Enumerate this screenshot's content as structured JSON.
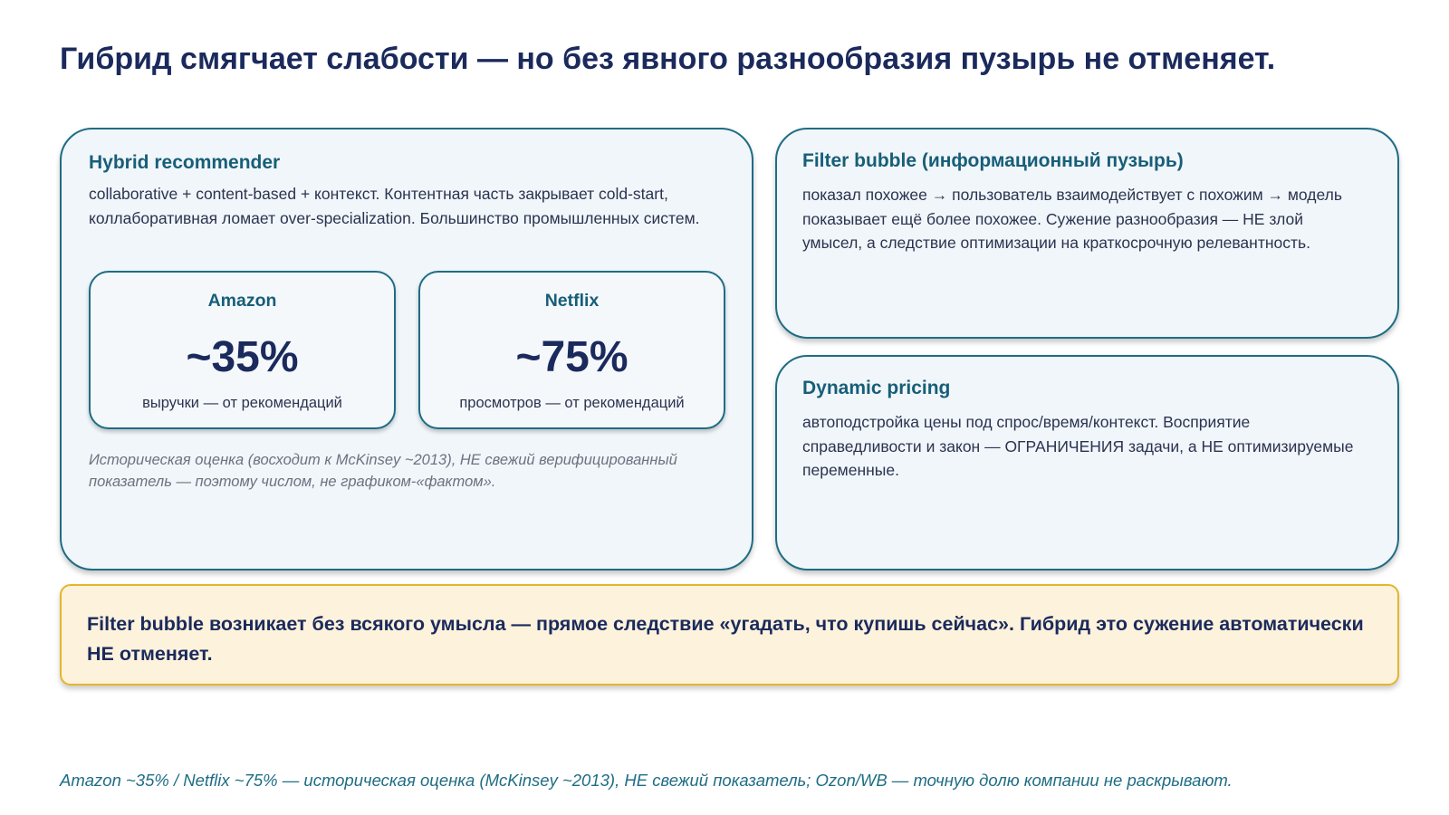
{
  "title": "Гибрид смягчает слабости — но без явного разнообразия пузырь не отменяет.",
  "hybrid": {
    "heading": "Hybrid recommender",
    "body": "collaborative + content-based + контекст. Контентная часть закрывает cold-start, коллаборативная ломает over-specialization. Большинство промышленных систем.",
    "stats": [
      {
        "name": "Amazon",
        "value": "~35%",
        "caption": "выручки — от рекомендаций"
      },
      {
        "name": "Netflix",
        "value": "~75%",
        "caption": "просмотров — от рекомендаций"
      }
    ],
    "note": "Историческая оценка (восходит к McKinsey ~2013), НЕ свежий верифицированный показатель — поэтому числом, не графиком-«фактом»."
  },
  "bubble": {
    "heading": "Filter bubble (информационный пузырь)",
    "body": "показал похожее → пользователь взаимодействует с похожим → модель показывает ещё более похожее. Сужение разнообразия — НЕ злой умысел, а следствие оптимизации на краткосрочную релевантность."
  },
  "pricing": {
    "heading": "Dynamic pricing",
    "body": "автоподстройка цены под спрос/время/контекст. Восприятие справедливости и закон — ОГРАНИЧЕНИЯ задачи, а НЕ оптимизируемые переменные."
  },
  "callout": "Filter bubble возникает без всякого умысла — прямое следствие «угадать, что купишь сейчас». Гибрид это сужение автоматически НЕ отменяет.",
  "footnote": "Amazon ~35% / Netflix ~75% — историческая оценка (McKinsey ~2013), НЕ свежий показатель; Ozon/WB — точную долю компании не раскрывают.",
  "colors": {
    "accent": "#1e6d85",
    "heading": "#1b2a5c",
    "callout_border": "#e6b52a",
    "callout_bg": "#fdf2dc",
    "card_bg": "#f1f6fa"
  }
}
